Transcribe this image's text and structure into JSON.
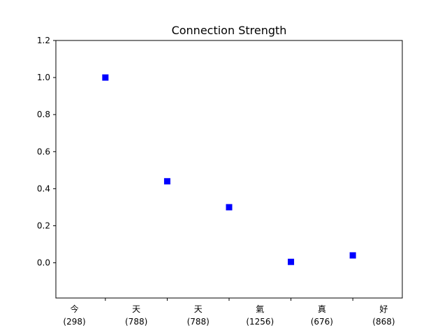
{
  "chart_data": {
    "type": "scatter",
    "title": "Connection Strength",
    "xlabel": "",
    "ylabel": "",
    "categories": [
      [
        "今",
        "(298)"
      ],
      [
        "天",
        "(788)"
      ],
      [
        "天",
        "(788)"
      ],
      [
        "氣",
        "(1256)"
      ],
      [
        "真",
        "(676)"
      ],
      [
        "好",
        "(868)"
      ]
    ],
    "points": [
      {
        "x": 0.5,
        "y": 1.0
      },
      {
        "x": 1.5,
        "y": 0.44
      },
      {
        "x": 2.5,
        "y": 0.3
      },
      {
        "x": 3.5,
        "y": 0.005
      },
      {
        "x": 4.5,
        "y": 0.04
      }
    ],
    "xlim": [
      -0.3,
      5.3
    ],
    "ylim": [
      -0.19,
      1.2
    ],
    "yticks": [
      "0.0",
      "0.2",
      "0.4",
      "0.6",
      "0.8",
      "1.0",
      "1.2"
    ],
    "ytick_values": [
      0.0,
      0.2,
      0.4,
      0.6,
      0.8,
      1.0,
      1.2
    ],
    "minor_xticks": [
      0.5,
      1.5,
      2.5,
      3.5,
      4.5
    ],
    "marker": "square",
    "marker_color": "#0000ff",
    "grid": false,
    "legend": "none"
  }
}
